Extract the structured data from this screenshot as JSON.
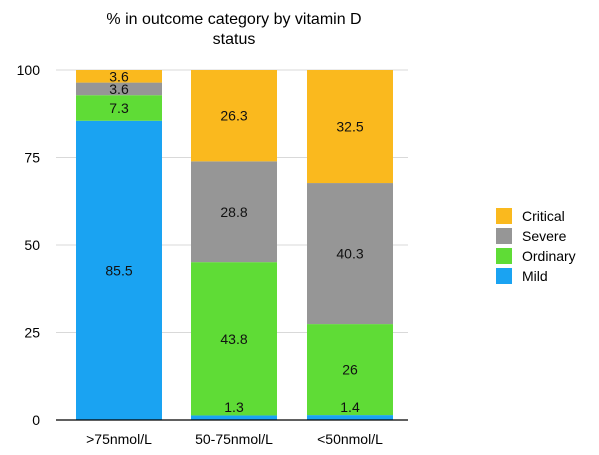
{
  "chart_data": {
    "type": "bar",
    "stacked": true,
    "title": "% in outcome category by vitamin D status",
    "title_lines": [
      "% in outcome category by vitamin D",
      "status"
    ],
    "xlabel": "",
    "ylabel": "",
    "ylim": [
      0,
      100
    ],
    "yticks": [
      0,
      25,
      50,
      75,
      100
    ],
    "grid": true,
    "legend_position": "right",
    "categories": [
      ">75nmol/L",
      "50-75nmol/L",
      "<50nmol/L"
    ],
    "series": [
      {
        "name": "Mild",
        "color": "#1aa3f2",
        "values": [
          85.5,
          1.3,
          1.4
        ],
        "labels": [
          "85.5",
          "",
          ""
        ]
      },
      {
        "name": "Ordinary",
        "color": "#5fdc36",
        "values": [
          7.3,
          43.8,
          26
        ],
        "labels": [
          "7.3",
          "43.8",
          "26"
        ]
      },
      {
        "name": "Severe",
        "color": "#969696",
        "values": [
          3.6,
          28.8,
          40.3
        ],
        "labels": [
          "3.6",
          "28.8",
          "40.3"
        ]
      },
      {
        "name": "Critical",
        "color": "#fab91e",
        "values": [
          3.6,
          26.3,
          32.5
        ],
        "labels": [
          "3.6",
          "26.3",
          "32.5"
        ]
      }
    ],
    "extra_labels": [
      {
        "series": "Mild",
        "category_index": 1,
        "text": "1.3"
      },
      {
        "series": "Mild",
        "category_index": 2,
        "text": "1.4"
      }
    ],
    "legend_order": [
      "Critical",
      "Severe",
      "Ordinary",
      "Mild"
    ]
  }
}
